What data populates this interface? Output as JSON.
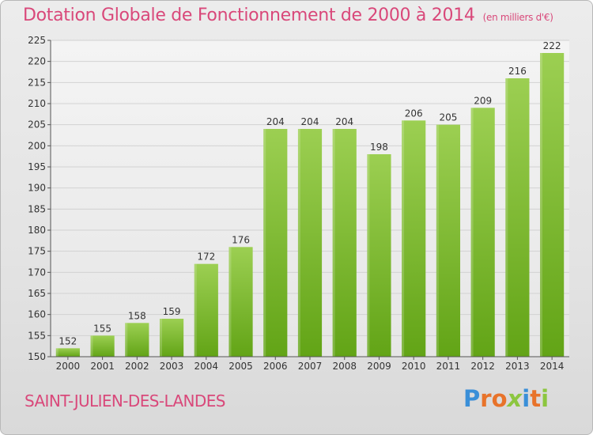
{
  "header": {
    "title": "Dotation Globale de Fonctionnement de 2000 à 2014",
    "subtitle": "(en milliers d'€)"
  },
  "footer": {
    "commune": "SAINT-JULIEN-DES-LANDES",
    "logo_text": "Proxiti"
  },
  "colors": {
    "bar_top": "#9ccf52",
    "bar_bottom": "#62a416",
    "title": "#d9487a",
    "logo_letters": [
      "#3a8fd8",
      "#e8732a",
      "#e8732a",
      "#8cc63f",
      "#3a8fd8",
      "#e8732a",
      "#8cc63f"
    ]
  },
  "chart_data": {
    "type": "bar",
    "title": "Dotation Globale de Fonctionnement de 2000 à 2014",
    "subtitle": "(en milliers d'€)",
    "categories": [
      "2000",
      "2001",
      "2002",
      "2003",
      "2004",
      "2005",
      "2006",
      "2007",
      "2008",
      "2009",
      "2010",
      "2011",
      "2012",
      "2013",
      "2014"
    ],
    "values": [
      152,
      155,
      158,
      159,
      172,
      176,
      204,
      204,
      204,
      198,
      206,
      205,
      209,
      216,
      222
    ],
    "ylim": [
      150,
      225
    ],
    "yticks": [
      150,
      155,
      160,
      165,
      170,
      175,
      180,
      185,
      190,
      195,
      200,
      205,
      210,
      215,
      220,
      225
    ],
    "grid": true,
    "xlabel": "",
    "ylabel": ""
  }
}
